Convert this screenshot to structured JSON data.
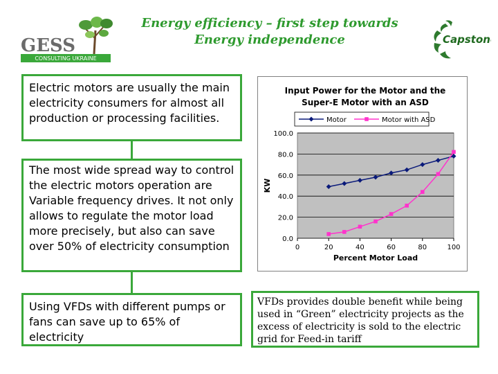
{
  "header": {
    "title_line1": "Energy efficiency – first step towards",
    "title_line2": "Energy independence"
  },
  "logos": {
    "gess": {
      "name": "GESS",
      "sub": "CONSULTING UKRAINE"
    },
    "capstone": {
      "name": "Capstone"
    }
  },
  "boxes": {
    "motors": "Electric motors are usually the main electricity consumers for almost all production or processing facilities.",
    "vfd": "The most wide spread way to control the electric motors operation are Variable frequency drives. It not only allows to regulate the motor load more precisely, but also can save over 50% of electricity consumption",
    "savings": "Using VFDs with different pumps or fans can save up to 65% of electricity",
    "green": "VFDs provides double benefit while being used in “Green” electricity projects as the excess of electricity is sold to the electric grid for Feed-in tariff"
  },
  "colors": {
    "accent_green": "#3aa83a",
    "motor": "#0a1a7a",
    "asd": "#ff33cc",
    "plot_bg": "#c0c0c0"
  },
  "chart_data": {
    "type": "line",
    "title_line1": "Input Power for the Motor and the",
    "title_line2": "Super-E Motor with an ASD",
    "xlabel": "Percent Motor Load",
    "ylabel": "KW",
    "xlim": [
      0,
      100
    ],
    "ylim": [
      0,
      100
    ],
    "x_ticks": [
      "0",
      "20",
      "40",
      "60",
      "80",
      "100"
    ],
    "y_ticks": [
      "0.0",
      "20.0",
      "40.0",
      "60.0",
      "80.0",
      "100.0"
    ],
    "x": [
      20,
      30,
      40,
      50,
      60,
      70,
      80,
      90,
      100
    ],
    "series": [
      {
        "name": "Motor",
        "values": [
          49,
          52,
          55,
          58,
          62,
          65,
          70,
          74,
          78
        ]
      },
      {
        "name": "Motor with ASD",
        "values": [
          4,
          6,
          11,
          16,
          23,
          31,
          44,
          61,
          82
        ]
      }
    ],
    "grid": true,
    "legend": "top"
  }
}
